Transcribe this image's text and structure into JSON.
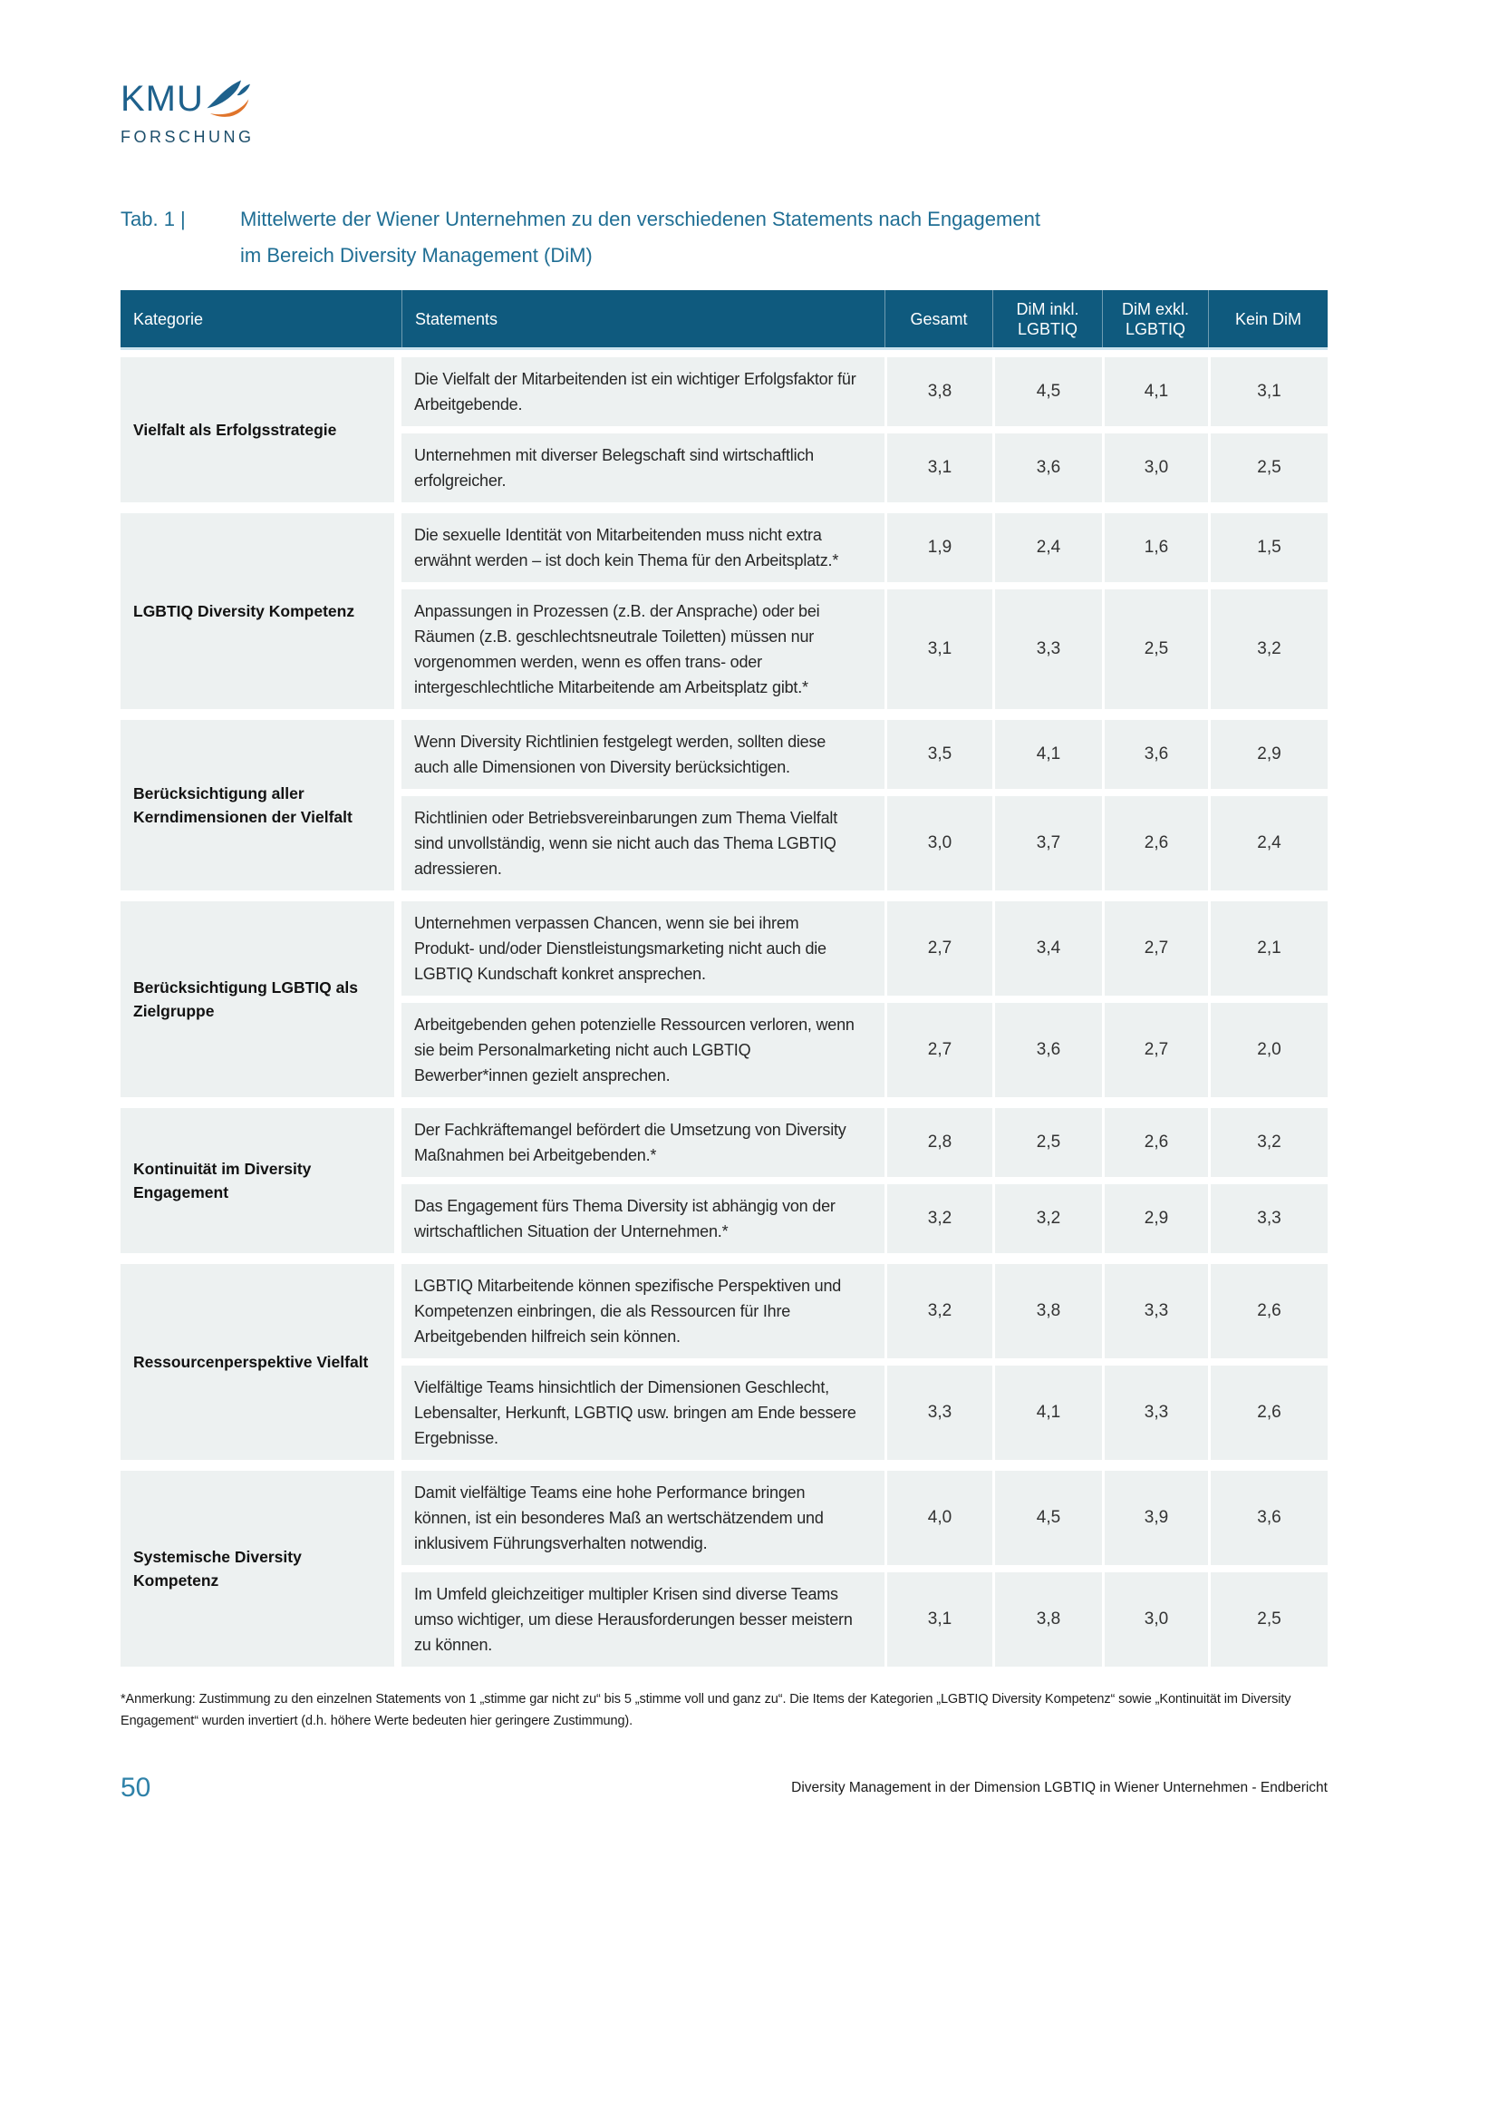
{
  "logo": {
    "text": "KMU",
    "subtext": "FORSCHUNG"
  },
  "title": {
    "label": "Tab. 1 |",
    "line1": "Mittelwerte der Wiener Unternehmen zu den verschiedenen Statements nach Engagement",
    "line2": "im Bereich Diversity Management (DiM)"
  },
  "table": {
    "headers": {
      "kategorie": "Kategorie",
      "statements": "Statements",
      "gesamt": "Gesamt",
      "dim_inkl": "DiM inkl. LGBTIQ",
      "dim_exkl": "DiM exkl. LGBTIQ",
      "kein_dim": "Kein DiM"
    },
    "groups": [
      {
        "category": "Vielfalt als Erfolgsstrategie",
        "rows": [
          {
            "statement": "Die Vielfalt der Mitarbeitenden ist ein wichtiger Erfolgsfaktor für Arbeitgebende.",
            "values": [
              "3,8",
              "4,5",
              "4,1",
              "3,1"
            ]
          },
          {
            "statement": "Unternehmen mit diverser Belegschaft sind wirtschaftlich erfolgreicher.",
            "values": [
              "3,1",
              "3,6",
              "3,0",
              "2,5"
            ]
          }
        ]
      },
      {
        "category": "LGBTIQ Diversity Kompetenz",
        "rows": [
          {
            "statement": "Die sexuelle Identität von Mitarbeitenden muss nicht extra erwähnt werden – ist doch kein Thema für den Arbeitsplatz.*",
            "values": [
              "1,9",
              "2,4",
              "1,6",
              "1,5"
            ]
          },
          {
            "statement": "Anpassungen in Prozessen (z.B. der Ansprache) oder bei Räumen (z.B. geschlechtsneutrale Toiletten) müssen nur vorgenommen werden, wenn es offen trans- oder intergeschlechtliche Mitarbeitende am Arbeitsplatz gibt.*",
            "values": [
              "3,1",
              "3,3",
              "2,5",
              "3,2"
            ]
          }
        ]
      },
      {
        "category": "Berücksichtigung aller Kerndimensionen der Vielfalt",
        "rows": [
          {
            "statement": "Wenn Diversity Richtlinien festgelegt werden, sollten diese auch alle Dimensionen von Diversity berücksichtigen.",
            "values": [
              "3,5",
              "4,1",
              "3,6",
              "2,9"
            ]
          },
          {
            "statement": "Richtlinien oder Betriebsvereinbarungen zum Thema Vielfalt sind unvollständig, wenn sie nicht auch das Thema LGBTIQ adressieren.",
            "values": [
              "3,0",
              "3,7",
              "2,6",
              "2,4"
            ]
          }
        ]
      },
      {
        "category": "Berücksichtigung LGBTIQ als Zielgruppe",
        "rows": [
          {
            "statement": "Unternehmen verpassen Chancen, wenn sie bei ihrem Produkt- und/oder Dienstleistungsmarketing nicht auch die LGBTIQ Kundschaft konkret ansprechen.",
            "values": [
              "2,7",
              "3,4",
              "2,7",
              "2,1"
            ]
          },
          {
            "statement": "Arbeitgebenden gehen potenzielle Ressourcen verloren, wenn sie beim Personalmarketing nicht auch LGBTIQ Bewerber*innen gezielt ansprechen.",
            "values": [
              "2,7",
              "3,6",
              "2,7",
              "2,0"
            ]
          }
        ]
      },
      {
        "category": "Kontinuität im Diversity Engagement",
        "rows": [
          {
            "statement": "Der Fachkräftemangel befördert die Umsetzung von Diversity Maßnahmen bei Arbeitgebenden.*",
            "values": [
              "2,8",
              "2,5",
              "2,6",
              "3,2"
            ]
          },
          {
            "statement": "Das Engagement fürs Thema Diversity ist abhängig von der wirtschaftlichen Situation der Unternehmen.*",
            "values": [
              "3,2",
              "3,2",
              "2,9",
              "3,3"
            ]
          }
        ]
      },
      {
        "category": "Ressourcenperspektive Vielfalt",
        "rows": [
          {
            "statement": "LGBTIQ Mitarbeitende können spezifische Perspektiven und Kompetenzen einbringen, die als Ressourcen für Ihre Arbeitgebenden hilfreich sein können.",
            "values": [
              "3,2",
              "3,8",
              "3,3",
              "2,6"
            ]
          },
          {
            "statement": "Vielfältige Teams hinsichtlich der Dimensionen Geschlecht, Lebensalter, Herkunft, LGBTIQ usw. bringen am Ende bessere Ergebnisse.",
            "values": [
              "3,3",
              "4,1",
              "3,3",
              "2,6"
            ]
          }
        ]
      },
      {
        "category": "Systemische Diversity Kompetenz",
        "rows": [
          {
            "statement": "Damit vielfältige Teams eine hohe Performance bringen können, ist ein besonderes Maß an wertschätzendem und inklusivem Führungsverhalten notwendig.",
            "values": [
              "4,0",
              "4,5",
              "3,9",
              "3,6"
            ]
          },
          {
            "statement": "Im Umfeld gleichzeitiger multipler Krisen sind diverse Teams umso wichtiger, um diese Herausforderungen besser meistern zu können.",
            "values": [
              "3,1",
              "3,8",
              "3,0",
              "2,5"
            ]
          }
        ]
      }
    ]
  },
  "footnote": "*Anmerkung: Zustimmung zu den einzelnen Statements von 1 „stimme gar nicht zu“ bis 5 „stimme voll und ganz zu“. Die Items der Kategorien „LGBTIQ Diversity Kompetenz“ sowie „Kontinuität im Diversity Engagement“ wurden invertiert (d.h. höhere Werte bedeuten hier geringere Zustimmung).",
  "footer": {
    "page_number": "50",
    "text": "Diversity Management in der Dimension LGBTIQ in Wiener Unternehmen - Endbericht"
  },
  "colors": {
    "header_bg": "#0F5A7E",
    "row_bg": "#EDF1F1",
    "title_blue": "#1F6E94",
    "logo_blue": "#1E618C",
    "logo_dark": "#1C4E6B",
    "accent_orange": "#E0742B",
    "page_number_blue": "#2E81A8"
  }
}
